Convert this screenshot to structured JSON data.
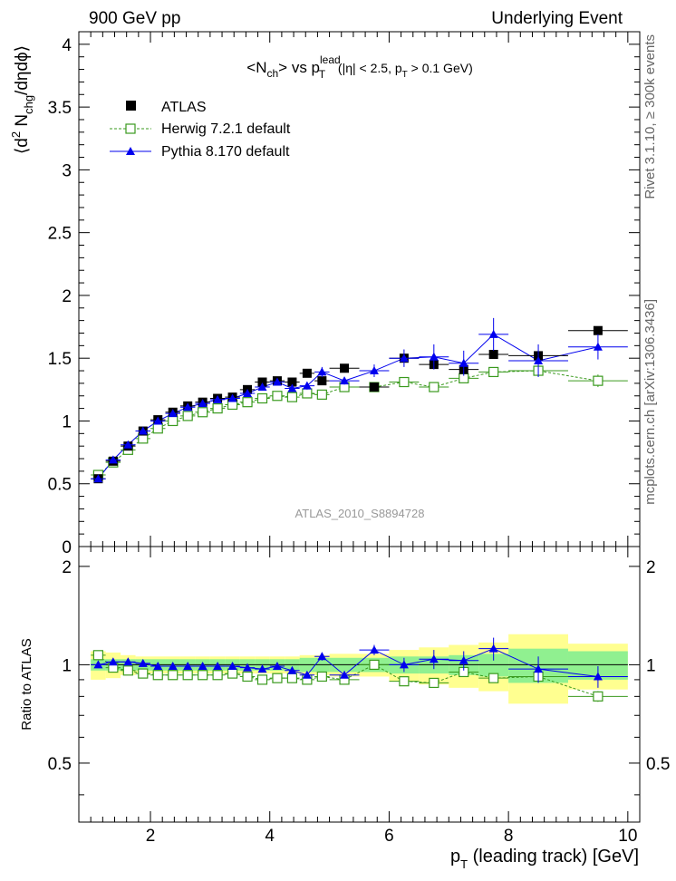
{
  "header": {
    "left": "900 GeV pp",
    "right": "Underlying Event"
  },
  "side": {
    "rivet": "Rivet 3.1.10, ≥ 300k events",
    "mcplots": "mcplots.cern.ch [arXiv:1306.3436]"
  },
  "colors": {
    "atlas": "#000000",
    "herwig": "#3a9a1e",
    "pythia": "#0000ee",
    "band_stat": "#90f090",
    "band_total": "#ffff90"
  },
  "chart_data": [
    {
      "type": "scatter",
      "panel": "main",
      "title": "<N_ch> vs p_T^lead (|η| < 2.5, p_T > 0.1 GeV)",
      "title_parts": {
        "a": "<N",
        "a_sub": "ch",
        "b": "> vs p",
        "b_sup": "lead",
        "b_sub": "T",
        "c": " (|η| < 2.5, p",
        "c_sub": "T",
        "d": " > 0.1 GeV)"
      },
      "ylabel_parts": {
        "a": "⟨d",
        "a_sup": "2",
        "b": " N",
        "b_sub": "chg",
        "c": "/dηdϕ⟩"
      },
      "xlim": [
        0.8,
        10.2
      ],
      "ylim": [
        0,
        4.1
      ],
      "yticks": [
        0,
        0.5,
        1,
        1.5,
        2,
        2.5,
        3,
        3.5,
        4
      ],
      "ytick_labels": [
        "0",
        "0.5",
        "1",
        "1.5",
        "2",
        "2.5",
        "3",
        "3.5",
        "4"
      ],
      "watermark": "ATLAS_2010_S8894728",
      "legend": {
        "position": "top-left",
        "entries": [
          "ATLAS",
          "Herwig 7.2.1 default",
          "Pythia 8.170 default"
        ]
      },
      "x": [
        1.125,
        1.375,
        1.625,
        1.875,
        2.125,
        2.375,
        2.625,
        2.875,
        3.125,
        3.375,
        3.625,
        3.875,
        4.125,
        4.375,
        4.625,
        4.875,
        5.25,
        5.75,
        6.25,
        6.75,
        7.25,
        7.75,
        8.5,
        9.5
      ],
      "xerr": [
        0.125,
        0.125,
        0.125,
        0.125,
        0.125,
        0.125,
        0.125,
        0.125,
        0.125,
        0.125,
        0.125,
        0.125,
        0.125,
        0.125,
        0.125,
        0.125,
        0.25,
        0.25,
        0.25,
        0.25,
        0.25,
        0.25,
        0.5,
        0.5
      ],
      "series": [
        {
          "name": "ATLAS",
          "marker": "filled-square",
          "values": [
            0.54,
            0.68,
            0.8,
            0.92,
            1.01,
            1.07,
            1.12,
            1.15,
            1.18,
            1.19,
            1.25,
            1.31,
            1.32,
            1.31,
            1.38,
            1.32,
            1.42,
            1.27,
            1.5,
            1.45,
            1.41,
            1.53,
            1.52,
            1.72
          ]
        },
        {
          "name": "Herwig 7.2.1 default",
          "marker": "open-square",
          "line": "dashed",
          "values": [
            0.57,
            0.67,
            0.77,
            0.86,
            0.94,
            1.0,
            1.04,
            1.07,
            1.1,
            1.13,
            1.15,
            1.18,
            1.2,
            1.19,
            1.22,
            1.21,
            1.27,
            1.27,
            1.31,
            1.27,
            1.34,
            1.39,
            1.4,
            1.32
          ],
          "errors": [
            0.015,
            0.015,
            0.015,
            0.015,
            0.015,
            0.015,
            0.015,
            0.015,
            0.015,
            0.015,
            0.015,
            0.015,
            0.015,
            0.015,
            0.015,
            0.015,
            0.02,
            0.02,
            0.025,
            0.025,
            0.03,
            0.035,
            0.04,
            0.05
          ]
        },
        {
          "name": "Pythia 8.170 default",
          "marker": "filled-triangle",
          "line": "solid",
          "values": [
            0.54,
            0.69,
            0.81,
            0.92,
            1.0,
            1.06,
            1.11,
            1.14,
            1.17,
            1.18,
            1.22,
            1.27,
            1.31,
            1.26,
            1.28,
            1.39,
            1.32,
            1.4,
            1.5,
            1.51,
            1.46,
            1.69,
            1.48,
            1.59
          ],
          "errors": [
            0.015,
            0.015,
            0.015,
            0.015,
            0.015,
            0.015,
            0.015,
            0.015,
            0.02,
            0.02,
            0.02,
            0.02,
            0.025,
            0.03,
            0.03,
            0.04,
            0.03,
            0.05,
            0.07,
            0.1,
            0.1,
            0.13,
            0.13,
            0.1
          ]
        }
      ]
    },
    {
      "type": "scatter",
      "panel": "ratio",
      "ylabel": "Ratio to ATLAS",
      "xlabel_parts": {
        "a": "p",
        "a_sub": "T",
        "b": " (leading track) [GeV]"
      },
      "xlim": [
        0.8,
        10.2
      ],
      "ylim": [
        0.33,
        2.3
      ],
      "xticks": [
        2,
        4,
        6,
        8,
        10
      ],
      "xtick_labels": [
        "2",
        "4",
        "6",
        "8",
        "10"
      ],
      "yticks": [
        0.5,
        1,
        2
      ],
      "ytick_labels": [
        "0.5",
        "1",
        "2"
      ],
      "band_edges": [
        1.0,
        1.25,
        1.5,
        1.75,
        2.0,
        2.25,
        2.5,
        2.75,
        3.0,
        3.25,
        3.5,
        3.75,
        4.0,
        4.25,
        4.5,
        4.75,
        5.0,
        5.5,
        6.0,
        6.5,
        7.0,
        7.5,
        8.0,
        9.0,
        10.0
      ],
      "band_stat": [
        0.04,
        0.04,
        0.04,
        0.04,
        0.04,
        0.04,
        0.04,
        0.04,
        0.04,
        0.04,
        0.04,
        0.04,
        0.04,
        0.04,
        0.05,
        0.05,
        0.05,
        0.05,
        0.06,
        0.06,
        0.07,
        0.08,
        0.12,
        0.1
      ],
      "band_total": [
        0.1,
        0.09,
        0.07,
        0.06,
        0.06,
        0.06,
        0.06,
        0.06,
        0.06,
        0.06,
        0.06,
        0.06,
        0.06,
        0.06,
        0.07,
        0.07,
        0.08,
        0.08,
        0.11,
        0.13,
        0.15,
        0.17,
        0.24,
        0.16
      ],
      "series": [
        {
          "name": "Herwig 7.2.1 default",
          "values": [
            1.07,
            0.98,
            0.96,
            0.94,
            0.93,
            0.93,
            0.93,
            0.93,
            0.93,
            0.94,
            0.92,
            0.9,
            0.91,
            0.91,
            0.9,
            0.92,
            0.9,
            1.0,
            0.89,
            0.88,
            0.95,
            0.91,
            0.92,
            0.8
          ],
          "errors": [
            0.015,
            0.015,
            0.015,
            0.015,
            0.015,
            0.015,
            0.015,
            0.015,
            0.015,
            0.015,
            0.015,
            0.015,
            0.015,
            0.015,
            0.015,
            0.015,
            0.015,
            0.02,
            0.02,
            0.02,
            0.02,
            0.025,
            0.025,
            0.03
          ]
        },
        {
          "name": "Pythia 8.170 default",
          "values": [
            1.0,
            1.02,
            1.02,
            1.01,
            0.99,
            0.99,
            0.99,
            0.99,
            0.99,
            0.99,
            0.98,
            0.97,
            0.99,
            0.96,
            0.93,
            1.06,
            0.93,
            1.11,
            1.0,
            1.04,
            1.03,
            1.12,
            0.97,
            0.92
          ],
          "errors": [
            0.015,
            0.015,
            0.015,
            0.015,
            0.015,
            0.015,
            0.015,
            0.015,
            0.015,
            0.015,
            0.015,
            0.015,
            0.02,
            0.02,
            0.02,
            0.03,
            0.02,
            0.04,
            0.05,
            0.07,
            0.07,
            0.09,
            0.09,
            0.07
          ]
        }
      ]
    }
  ]
}
